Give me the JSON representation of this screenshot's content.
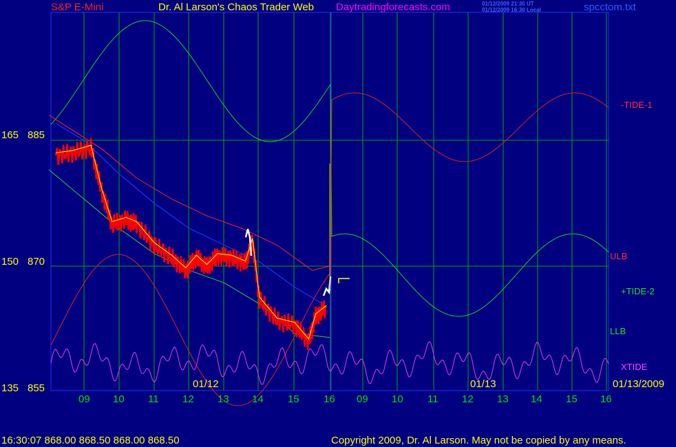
{
  "header": {
    "instrument": "S&P E-Mini",
    "title": "Dr. Al Larson's Chaos Trader Web",
    "site": "Daytradingforecasts.com",
    "timestamp_ut": "01/12/2009 21:30 UT",
    "timestamp_local": "01/12/2009 16:30 Local",
    "file": "spcctom.txt"
  },
  "y_axis": [
    {
      "left": "165",
      "right": "885"
    },
    {
      "left": "150",
      "right": "870"
    },
    {
      "left": "135",
      "right": "855"
    }
  ],
  "x_axis": {
    "hour_labels": [
      "09",
      "10",
      "11",
      "12",
      "13",
      "14",
      "15",
      "16",
      "09",
      "10",
      "11",
      "12",
      "13",
      "14",
      "15",
      "16"
    ],
    "date_labels": [
      "01/12",
      "01/13",
      "01/13/2009"
    ]
  },
  "legend": {
    "tide1": "-TIDE-1",
    "ulb": "ULB",
    "tide2": "+TIDE-2",
    "llb": "LLB",
    "xtide": "XTIDE"
  },
  "footer": {
    "quote": "16:30:07  868.00 868.50 868.00 868.50",
    "copyright": "Copyright 2009, Dr. Al Larson. May not be copied by any means."
  },
  "colors": {
    "background": "#000080",
    "grid": "#00a800",
    "price": "#ff0000",
    "ulb_llb": "#ff2020",
    "tide1": "#e02020",
    "tide2": "#20d020",
    "xtide": "#e040e0",
    "blue_band": "#2030ff",
    "yellow": "#ffff00",
    "title_red": "#ff2020",
    "site_magenta": "#ff00ff",
    "file_blue": "#2060ff"
  },
  "chart_data": {
    "type": "line",
    "x_axis": "time (hours, two sessions: 01/12 and 01/13/2009)",
    "y_range": [
      855,
      890
    ],
    "y_ticks": [
      855,
      870,
      885
    ],
    "series": [
      {
        "name": "S&P E-Mini",
        "color": "#ff0000",
        "points": [
          [
            8.2,
            883.2
          ],
          [
            8.7,
            883.5
          ],
          [
            9.2,
            884.1
          ],
          [
            9.5,
            879
          ],
          [
            9.8,
            875
          ],
          [
            10.2,
            875.5
          ],
          [
            10.5,
            875
          ],
          [
            11,
            872.5
          ],
          [
            11.5,
            871
          ],
          [
            11.9,
            869.5
          ],
          [
            12.2,
            871
          ],
          [
            12.5,
            869.9
          ],
          [
            12.8,
            871.2
          ],
          [
            13.2,
            871
          ],
          [
            13.6,
            870.3
          ],
          [
            13.8,
            873
          ],
          [
            14,
            866
          ],
          [
            14.5,
            863.5
          ],
          [
            15,
            863
          ],
          [
            15.4,
            861
          ],
          [
            15.6,
            864
          ],
          [
            15.9,
            865
          ]
        ]
      },
      {
        "name": "ULB",
        "color": "#ff2020",
        "points": [
          [
            8.0,
            888
          ],
          [
            9.5,
            884
          ],
          [
            10.5,
            880.5
          ],
          [
            11.5,
            878
          ],
          [
            12.5,
            876
          ],
          [
            13.5,
            874.5
          ],
          [
            14.5,
            872.5
          ],
          [
            15.5,
            869.5
          ],
          [
            16,
            870
          ]
        ]
      },
      {
        "name": "LLB",
        "color": "#ff2020",
        "points": [
          [
            8.0,
            881.5
          ],
          [
            9.0,
            878
          ],
          [
            10,
            874.5
          ],
          [
            11,
            871.5
          ],
          [
            12,
            869.5
          ],
          [
            13,
            868
          ],
          [
            14,
            865.5
          ],
          [
            15,
            862
          ],
          [
            16,
            861.5
          ]
        ]
      },
      {
        "name": "-TIDE-1",
        "color": "#e02020"
      },
      {
        "name": "+TIDE-2",
        "color": "#20d020"
      },
      {
        "name": "XTIDE",
        "color": "#e040e0"
      }
    ]
  }
}
